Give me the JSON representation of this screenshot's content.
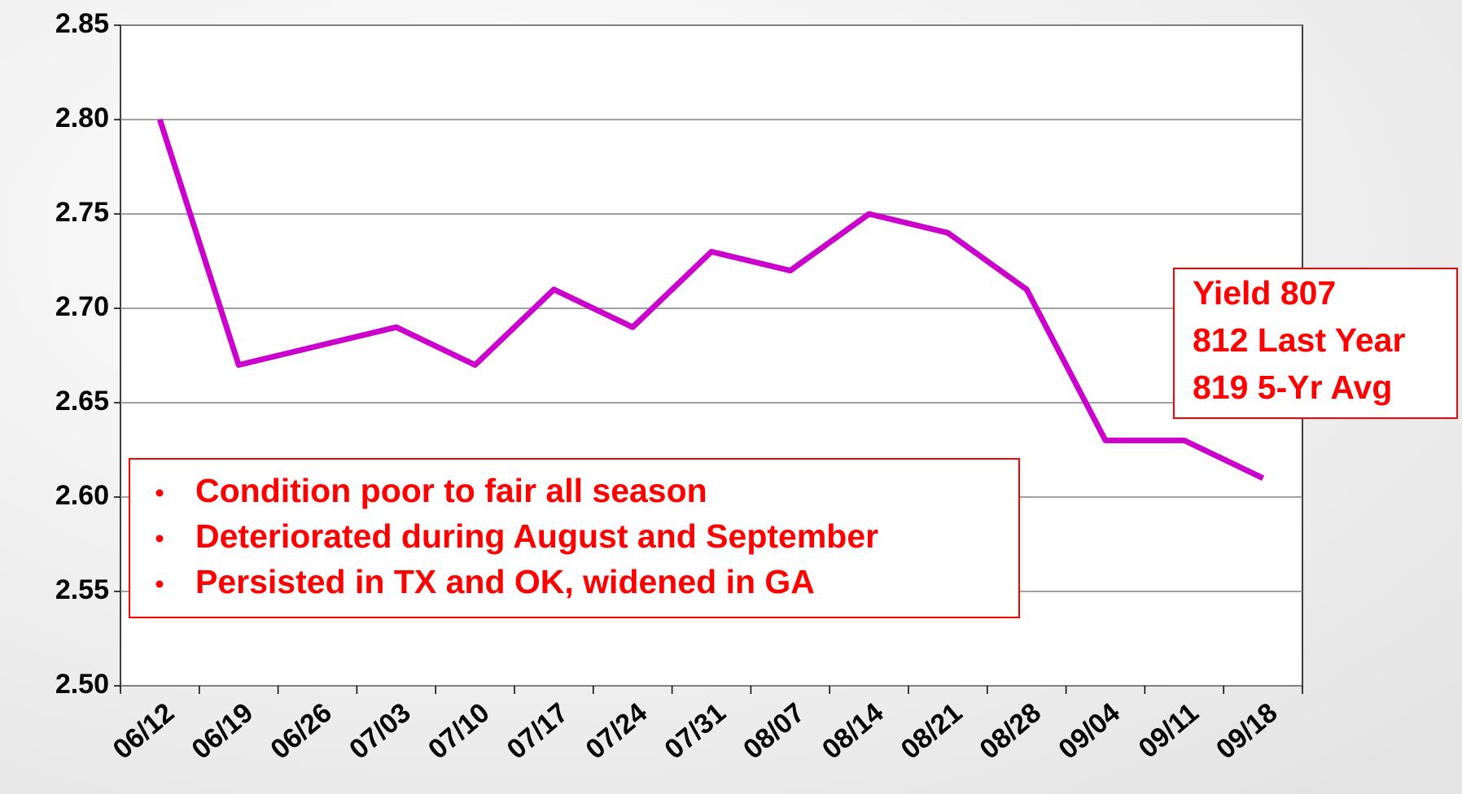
{
  "chart_data": {
    "type": "line",
    "categories": [
      "06/12",
      "06/19",
      "06/26",
      "07/03",
      "07/10",
      "07/17",
      "07/24",
      "07/31",
      "08/07",
      "08/14",
      "08/21",
      "08/28",
      "09/04",
      "09/11",
      "09/18"
    ],
    "series": [
      {
        "name": null,
        "color": "#cc00cc",
        "values": [
          2.8,
          2.67,
          2.68,
          2.69,
          2.67,
          2.71,
          2.69,
          2.73,
          2.72,
          2.75,
          2.74,
          2.71,
          2.63,
          2.63,
          2.61
        ]
      }
    ],
    "ylim": [
      2.5,
      2.85
    ],
    "yticks": [
      {
        "value": 2.5,
        "label": "2.50"
      },
      2.55,
      {
        "value": 2.6,
        "label": "2.60"
      },
      2.65,
      {
        "value": 2.7,
        "label": "2.70"
      },
      2.75,
      {
        "value": 2.8,
        "label": "2.80"
      },
      2.85
    ],
    "grid": true,
    "annotations": {
      "bullets": [
        "Condition poor to fair all season",
        "Deteriorated during August and September",
        "Persisted in TX and OK, widened in GA"
      ],
      "yield": [
        "Yield 807",
        "812 Last Year",
        "819 5-Yr Avg"
      ]
    }
  }
}
